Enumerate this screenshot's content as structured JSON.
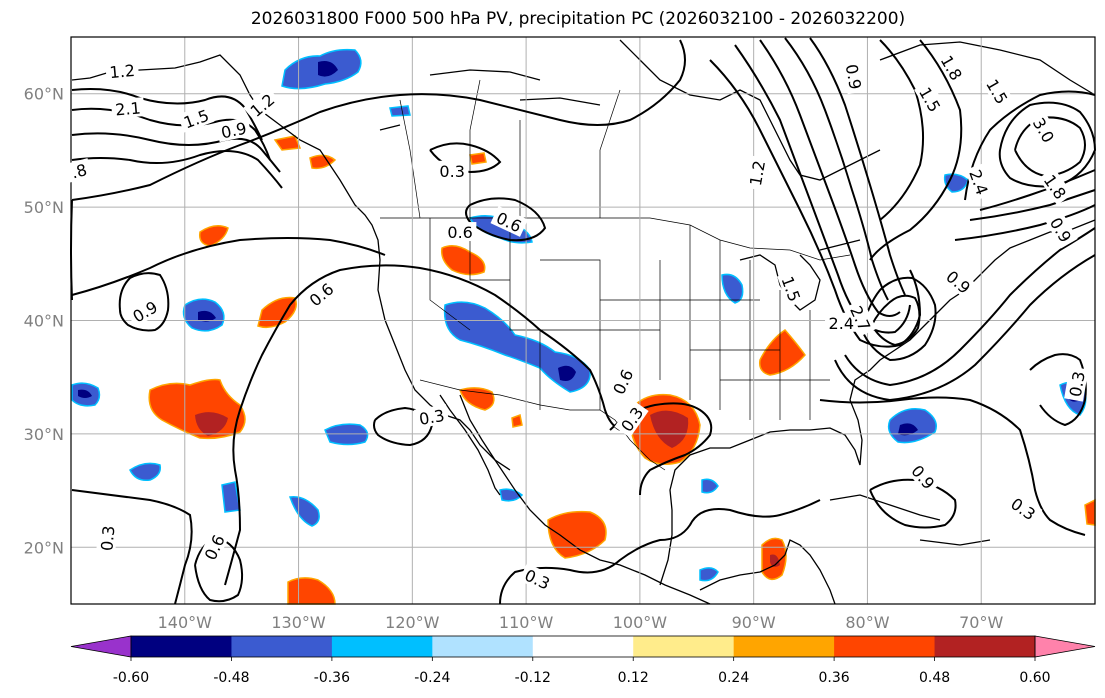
{
  "title": "2026031800 F000 500 hPa PV, precipitation PC (2026032100 - 2026032200)",
  "map": {
    "projection": "plate-carree",
    "lon_range": [
      -150,
      -60
    ],
    "lat_range": [
      15,
      65
    ],
    "lat_ticks": [
      {
        "value": 20,
        "label": "20°N"
      },
      {
        "value": 30,
        "label": "30°N"
      },
      {
        "value": 40,
        "label": "40°N"
      },
      {
        "value": 50,
        "label": "50°N"
      },
      {
        "value": 60,
        "label": "60°N"
      }
    ],
    "lon_ticks": [
      {
        "value": -140,
        "label": "140°W"
      },
      {
        "value": -130,
        "label": "130°W"
      },
      {
        "value": -120,
        "label": "120°W"
      },
      {
        "value": -110,
        "label": "110°W"
      },
      {
        "value": -100,
        "label": "100°W"
      },
      {
        "value": -90,
        "label": "90°W"
      },
      {
        "value": -80,
        "label": "80°W"
      },
      {
        "value": -70,
        "label": "70°W"
      }
    ],
    "grid": true,
    "gridline_color": "#b0b0b0",
    "contour_color": "#000000",
    "pv_contour_labels": [
      {
        "text": "2.1",
        "lon": -145.0,
        "lat": 58.7,
        "rot": -5
      },
      {
        "text": "1.2",
        "lon": -145.5,
        "lat": 62.0,
        "rot": -5
      },
      {
        "text": "1.5",
        "lon": -139.0,
        "lat": 57.8,
        "rot": -20
      },
      {
        "text": "0.9",
        "lon": -135.7,
        "lat": 56.8,
        "rot": -12
      },
      {
        "text": "1.2",
        "lon": -133.2,
        "lat": 59.0,
        "rot": -40
      },
      {
        "text": ".8",
        "lon": -149.3,
        "lat": 53.2,
        "rot": -15
      },
      {
        "text": "0.3",
        "lon": -116.5,
        "lat": 53.2,
        "rot": 0
      },
      {
        "text": "0.6",
        "lon": -111.5,
        "lat": 48.7,
        "rot": 25
      },
      {
        "text": "0.6",
        "lon": -115.8,
        "lat": 47.8,
        "rot": 0
      },
      {
        "text": "0.6",
        "lon": -128.0,
        "lat": 42.3,
        "rot": -40
      },
      {
        "text": "0.9",
        "lon": -143.5,
        "lat": 40.8,
        "rot": -30
      },
      {
        "text": "0.3",
        "lon": -118.3,
        "lat": 31.5,
        "rot": -10
      },
      {
        "text": "0.6",
        "lon": -101.5,
        "lat": 34.6,
        "rot": -65
      },
      {
        "text": "0.3",
        "lon": -100.7,
        "lat": 31.3,
        "rot": -55
      },
      {
        "text": "0.3",
        "lon": -146.8,
        "lat": 20.8,
        "rot": -85
      },
      {
        "text": "0.6",
        "lon": -137.4,
        "lat": 20.0,
        "rot": -65
      },
      {
        "text": "0.3",
        "lon": -109.0,
        "lat": 17.2,
        "rot": 25
      },
      {
        "text": "0.3",
        "lon": -66.3,
        "lat": 23.4,
        "rot": 35
      },
      {
        "text": "0.3",
        "lon": -61.6,
        "lat": 34.4,
        "rot": -80
      },
      {
        "text": "0.9",
        "lon": -75.1,
        "lat": 26.2,
        "rot": 50
      },
      {
        "text": "1.2",
        "lon": -89.7,
        "lat": 53.0,
        "rot": -80
      },
      {
        "text": "1.5",
        "lon": -86.7,
        "lat": 42.8,
        "rot": 70
      },
      {
        "text": "2.4",
        "lon": -82.3,
        "lat": 39.8,
        "rot": 0
      },
      {
        "text": "2.7",
        "lon": -80.6,
        "lat": 40.2,
        "rot": 65
      },
      {
        "text": "0.9",
        "lon": -72.0,
        "lat": 43.4,
        "rot": 40
      },
      {
        "text": "0.9",
        "lon": -81.2,
        "lat": 61.5,
        "rot": 80
      },
      {
        "text": "1.5",
        "lon": -74.5,
        "lat": 59.5,
        "rot": 60
      },
      {
        "text": "1.8",
        "lon": -72.6,
        "lat": 62.3,
        "rot": 60
      },
      {
        "text": "1.5",
        "lon": -68.6,
        "lat": 60.2,
        "rot": 60
      },
      {
        "text": "2.4",
        "lon": -70.2,
        "lat": 52.2,
        "rot": 70
      },
      {
        "text": "3.0",
        "lon": -64.5,
        "lat": 56.8,
        "rot": 60
      },
      {
        "text": "1.8",
        "lon": -63.5,
        "lat": 51.8,
        "rot": 55
      },
      {
        "text": "0.9",
        "lon": -63.0,
        "lat": 48.0,
        "rot": 60
      }
    ]
  },
  "colorbar": {
    "levels": [
      "-0.60",
      "-0.48",
      "-0.36",
      "-0.24",
      "-0.12",
      "0.12",
      "0.24",
      "0.36",
      "0.48",
      "0.60"
    ],
    "under_color": "#9932cc",
    "over_color": "#ff82ab",
    "colors": [
      "#000080",
      "#3b5bd0",
      "#00bfff",
      "#b0e2ff",
      "#ffffff",
      "#ffec8b",
      "#ffa500",
      "#ff4500",
      "#b22222"
    ]
  },
  "shading_colors": {
    "neg_strong": "#000080",
    "neg_mid": "#3b5bd0",
    "neg_light": "#00bfff",
    "pos_light": "#ffa500",
    "pos_mid": "#ff4500",
    "pos_strong": "#b22222"
  }
}
